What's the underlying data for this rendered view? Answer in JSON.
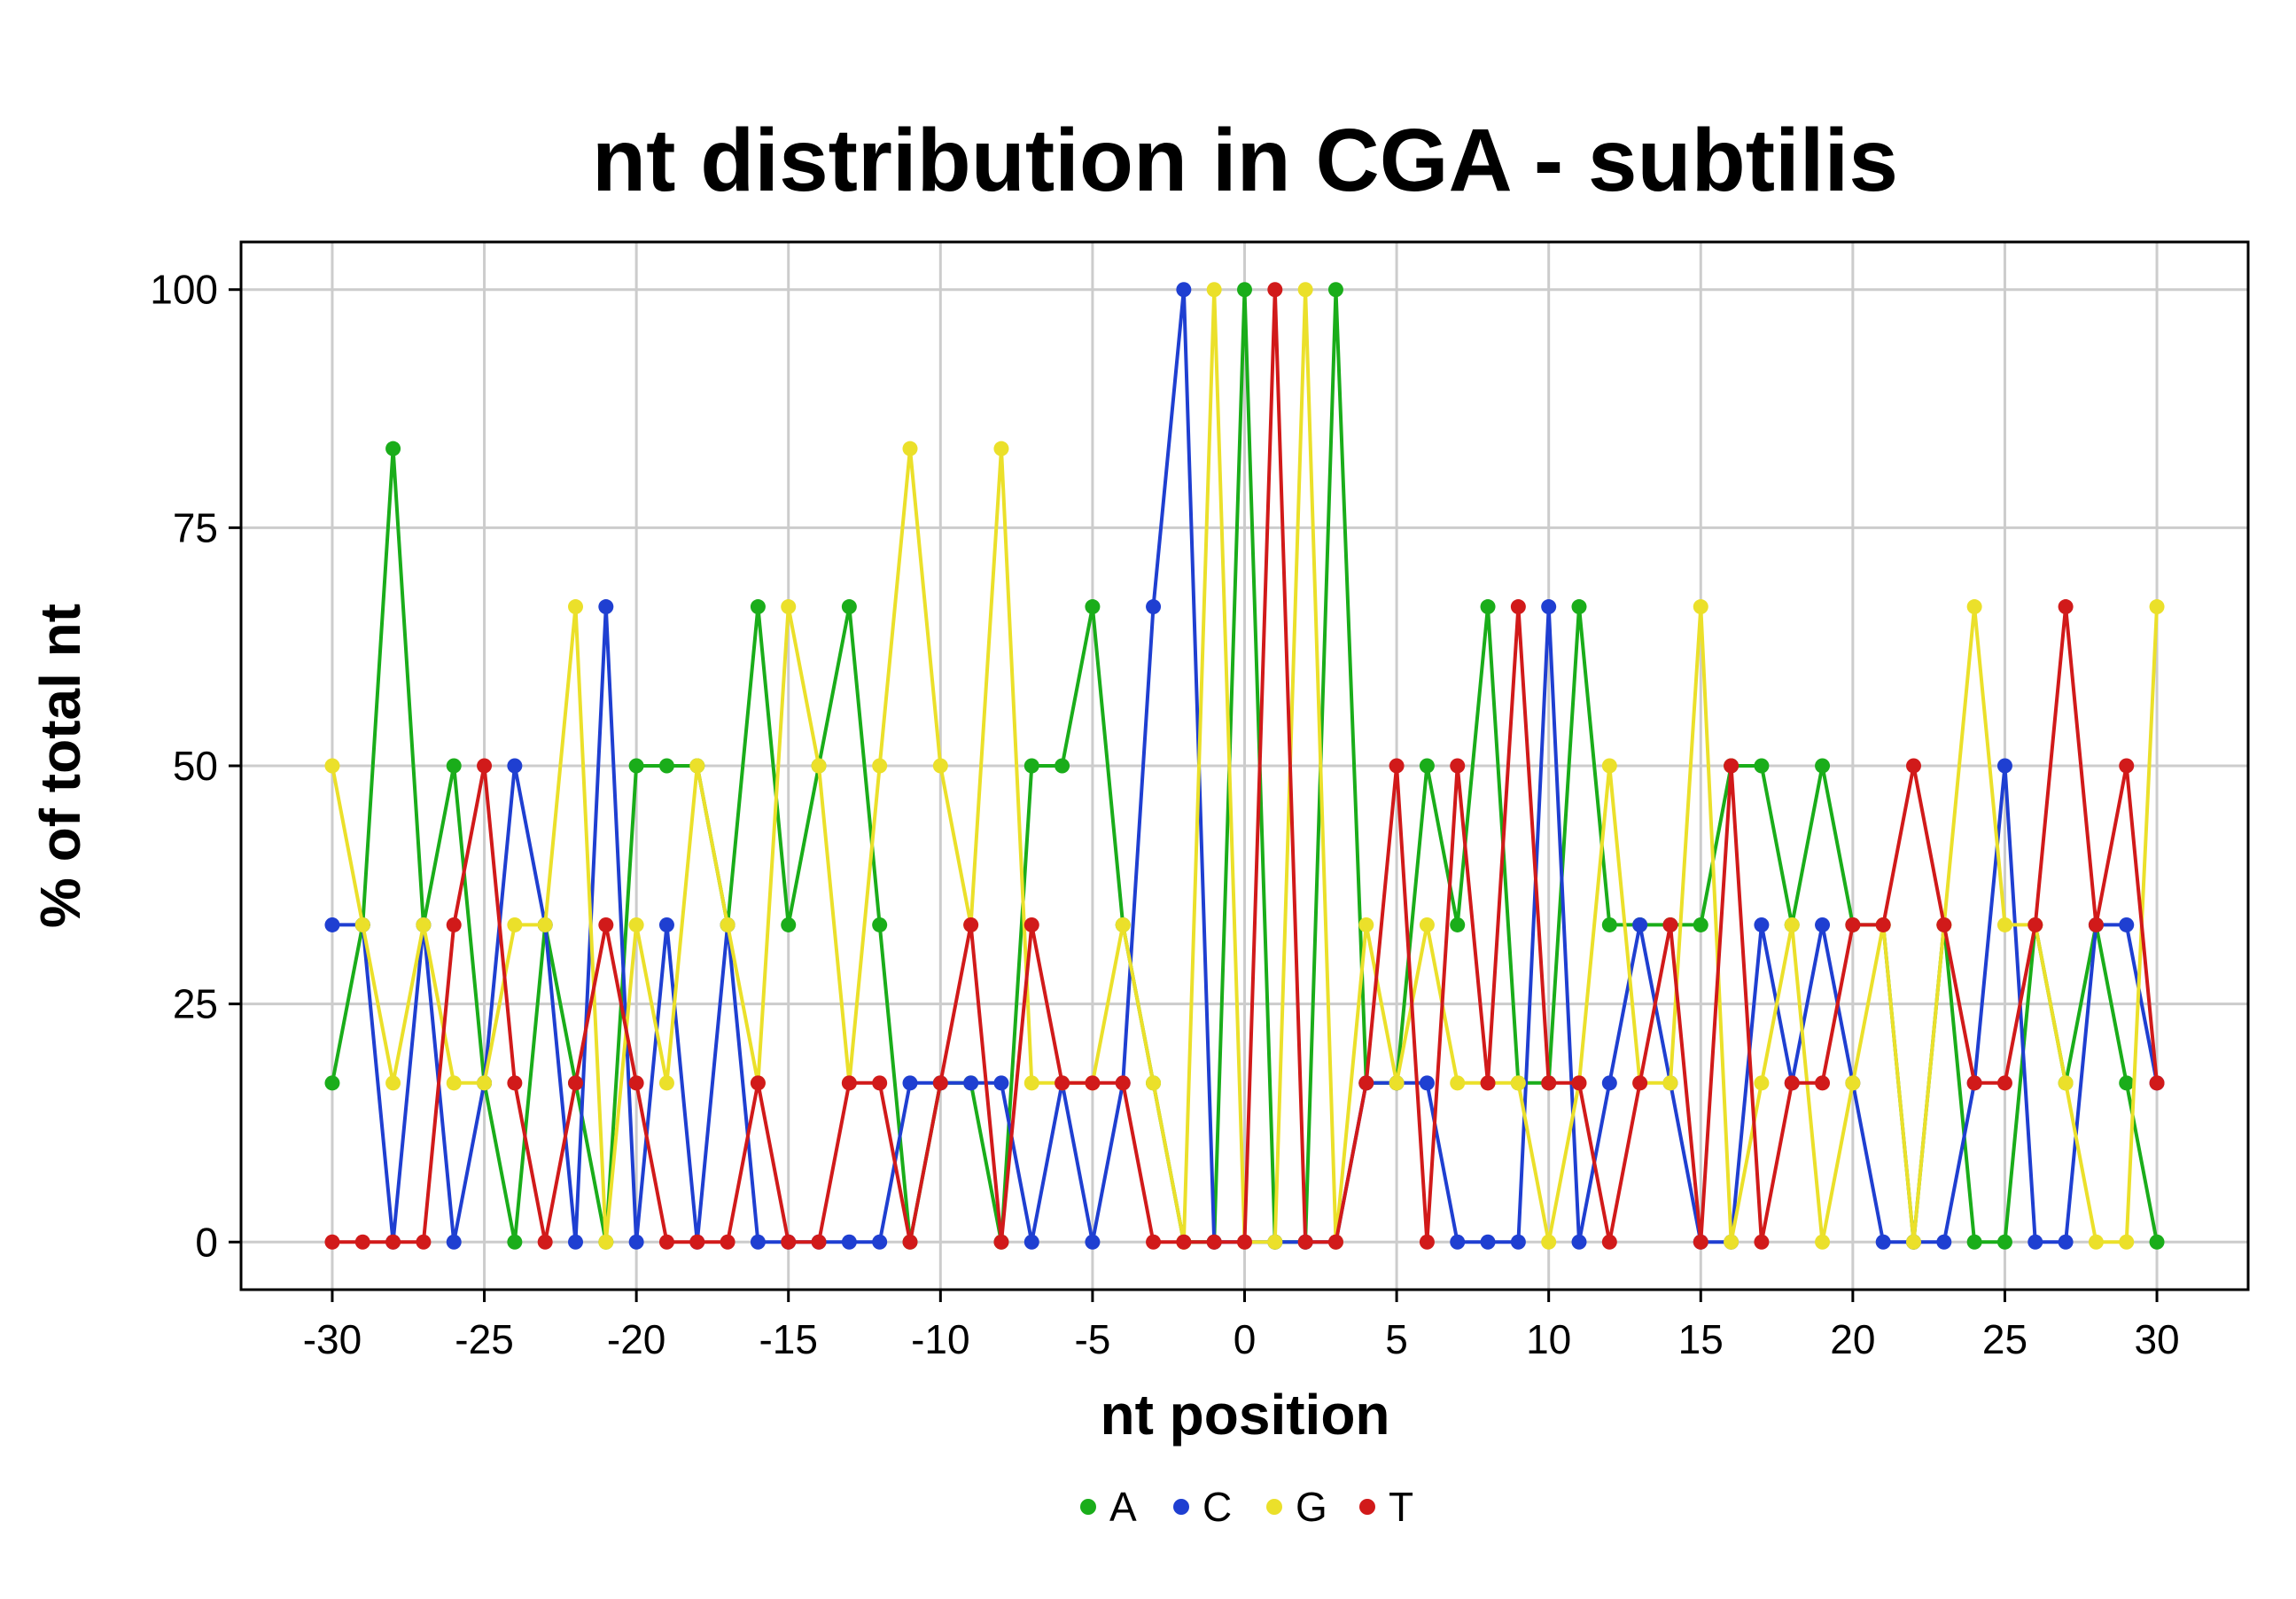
{
  "chart_data": {
    "type": "line",
    "title": "nt distribution in CGA - subtilis",
    "xlabel": "nt position",
    "ylabel": "% of total nt",
    "xlim": [
      -33,
      33
    ],
    "ylim": [
      -5,
      105
    ],
    "xticks": [
      -30,
      -25,
      -20,
      -15,
      -10,
      -5,
      0,
      5,
      10,
      15,
      20,
      25,
      30
    ],
    "yticks": [
      0,
      25,
      50,
      75,
      100
    ],
    "grid": true,
    "legend_position": "bottom",
    "x": [
      -30,
      -29,
      -28,
      -27,
      -26,
      -25,
      -24,
      -23,
      -22,
      -21,
      -20,
      -19,
      -18,
      -17,
      -16,
      -15,
      -14,
      -13,
      -12,
      -11,
      -10,
      -9,
      -8,
      -7,
      -6,
      -5,
      -4,
      -3,
      -2,
      -1,
      0,
      1,
      2,
      3,
      4,
      5,
      6,
      7,
      8,
      9,
      10,
      11,
      12,
      13,
      14,
      15,
      16,
      17,
      18,
      19,
      20,
      21,
      22,
      23,
      24,
      25,
      26,
      27,
      28,
      29,
      30
    ],
    "series": [
      {
        "name": "A",
        "color": "#1aad1a",
        "values": [
          16.7,
          33.3,
          83.3,
          33.3,
          50,
          16.7,
          0,
          33.3,
          16.7,
          0,
          50,
          50,
          50,
          33.3,
          66.7,
          33.3,
          50,
          66.7,
          33.3,
          0,
          16.7,
          16.7,
          0,
          50,
          50,
          66.7,
          33.3,
          16.7,
          0,
          0,
          100,
          0,
          0,
          100,
          16.7,
          16.7,
          50,
          33.3,
          66.7,
          16.7,
          16.7,
          66.7,
          33.3,
          33.3,
          33.3,
          33.3,
          50,
          50,
          33.3,
          50,
          33.3,
          33.3,
          0,
          33.3,
          0,
          0,
          33.3,
          16.7,
          33.3,
          16.7,
          0
        ]
      },
      {
        "name": "C",
        "color": "#1f3fd1",
        "values": [
          33.3,
          33.3,
          0,
          33.3,
          0,
          16.7,
          50,
          33.3,
          0,
          66.7,
          0,
          33.3,
          0,
          33.3,
          0,
          0,
          0,
          0,
          0,
          16.7,
          16.7,
          16.7,
          16.7,
          0,
          16.7,
          0,
          16.7,
          66.7,
          100,
          0,
          0,
          0,
          0,
          0,
          16.7,
          16.7,
          16.7,
          0,
          0,
          0,
          66.7,
          0,
          16.7,
          33.3,
          16.7,
          0,
          0,
          33.3,
          16.7,
          33.3,
          16.7,
          0,
          0,
          0,
          16.7,
          50,
          0,
          0,
          33.3,
          33.3,
          16.7
        ]
      },
      {
        "name": "G",
        "color": "#ebe02a",
        "values": [
          50,
          33.3,
          16.7,
          33.3,
          16.7,
          16.7,
          33.3,
          33.3,
          66.7,
          0,
          33.3,
          16.7,
          50,
          33.3,
          16.7,
          66.7,
          50,
          16.7,
          50,
          83.3,
          50,
          33.3,
          83.3,
          16.7,
          16.7,
          16.7,
          33.3,
          16.7,
          0,
          100,
          0,
          0,
          100,
          0,
          33.3,
          16.7,
          33.3,
          16.7,
          16.7,
          16.7,
          0,
          16.7,
          50,
          16.7,
          16.7,
          66.7,
          0,
          16.7,
          33.3,
          0,
          16.7,
          33.3,
          0,
          33.3,
          66.7,
          33.3,
          33.3,
          16.7,
          0,
          0,
          66.7
        ]
      },
      {
        "name": "T",
        "color": "#d11a1a",
        "values": [
          0,
          0,
          0,
          0,
          33.3,
          50,
          16.7,
          0,
          16.7,
          33.3,
          16.7,
          0,
          0,
          0,
          16.7,
          0,
          0,
          16.7,
          16.7,
          0,
          16.7,
          33.3,
          0,
          33.3,
          16.7,
          16.7,
          16.7,
          0,
          0,
          0,
          0,
          100,
          0,
          0,
          16.7,
          50,
          0,
          50,
          16.7,
          66.7,
          16.7,
          16.7,
          0,
          16.7,
          33.3,
          0,
          50,
          0,
          16.7,
          16.7,
          33.3,
          33.3,
          50,
          33.3,
          16.7,
          16.7,
          33.3,
          66.7,
          33.3,
          50,
          16.7
        ]
      }
    ]
  }
}
